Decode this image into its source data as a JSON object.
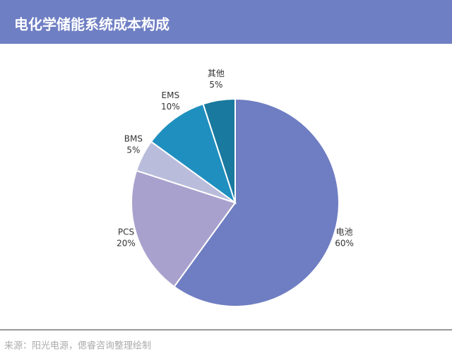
{
  "chart_data": {
    "type": "pie",
    "title": "电化学储能系统成本构成",
    "categories": [
      "电池",
      "PCS",
      "BMS",
      "EMS",
      "其他"
    ],
    "values": [
      60,
      20,
      5,
      10,
      5
    ],
    "value_labels": [
      "60%",
      "20%",
      "5%",
      "10%",
      "5%"
    ],
    "colors": [
      "#6f7ec2",
      "#a9a1cd",
      "#babcdc",
      "#1f8fbf",
      "#19799f"
    ],
    "source": "来源：阳光电源，偲睿咨询整理绘制"
  }
}
